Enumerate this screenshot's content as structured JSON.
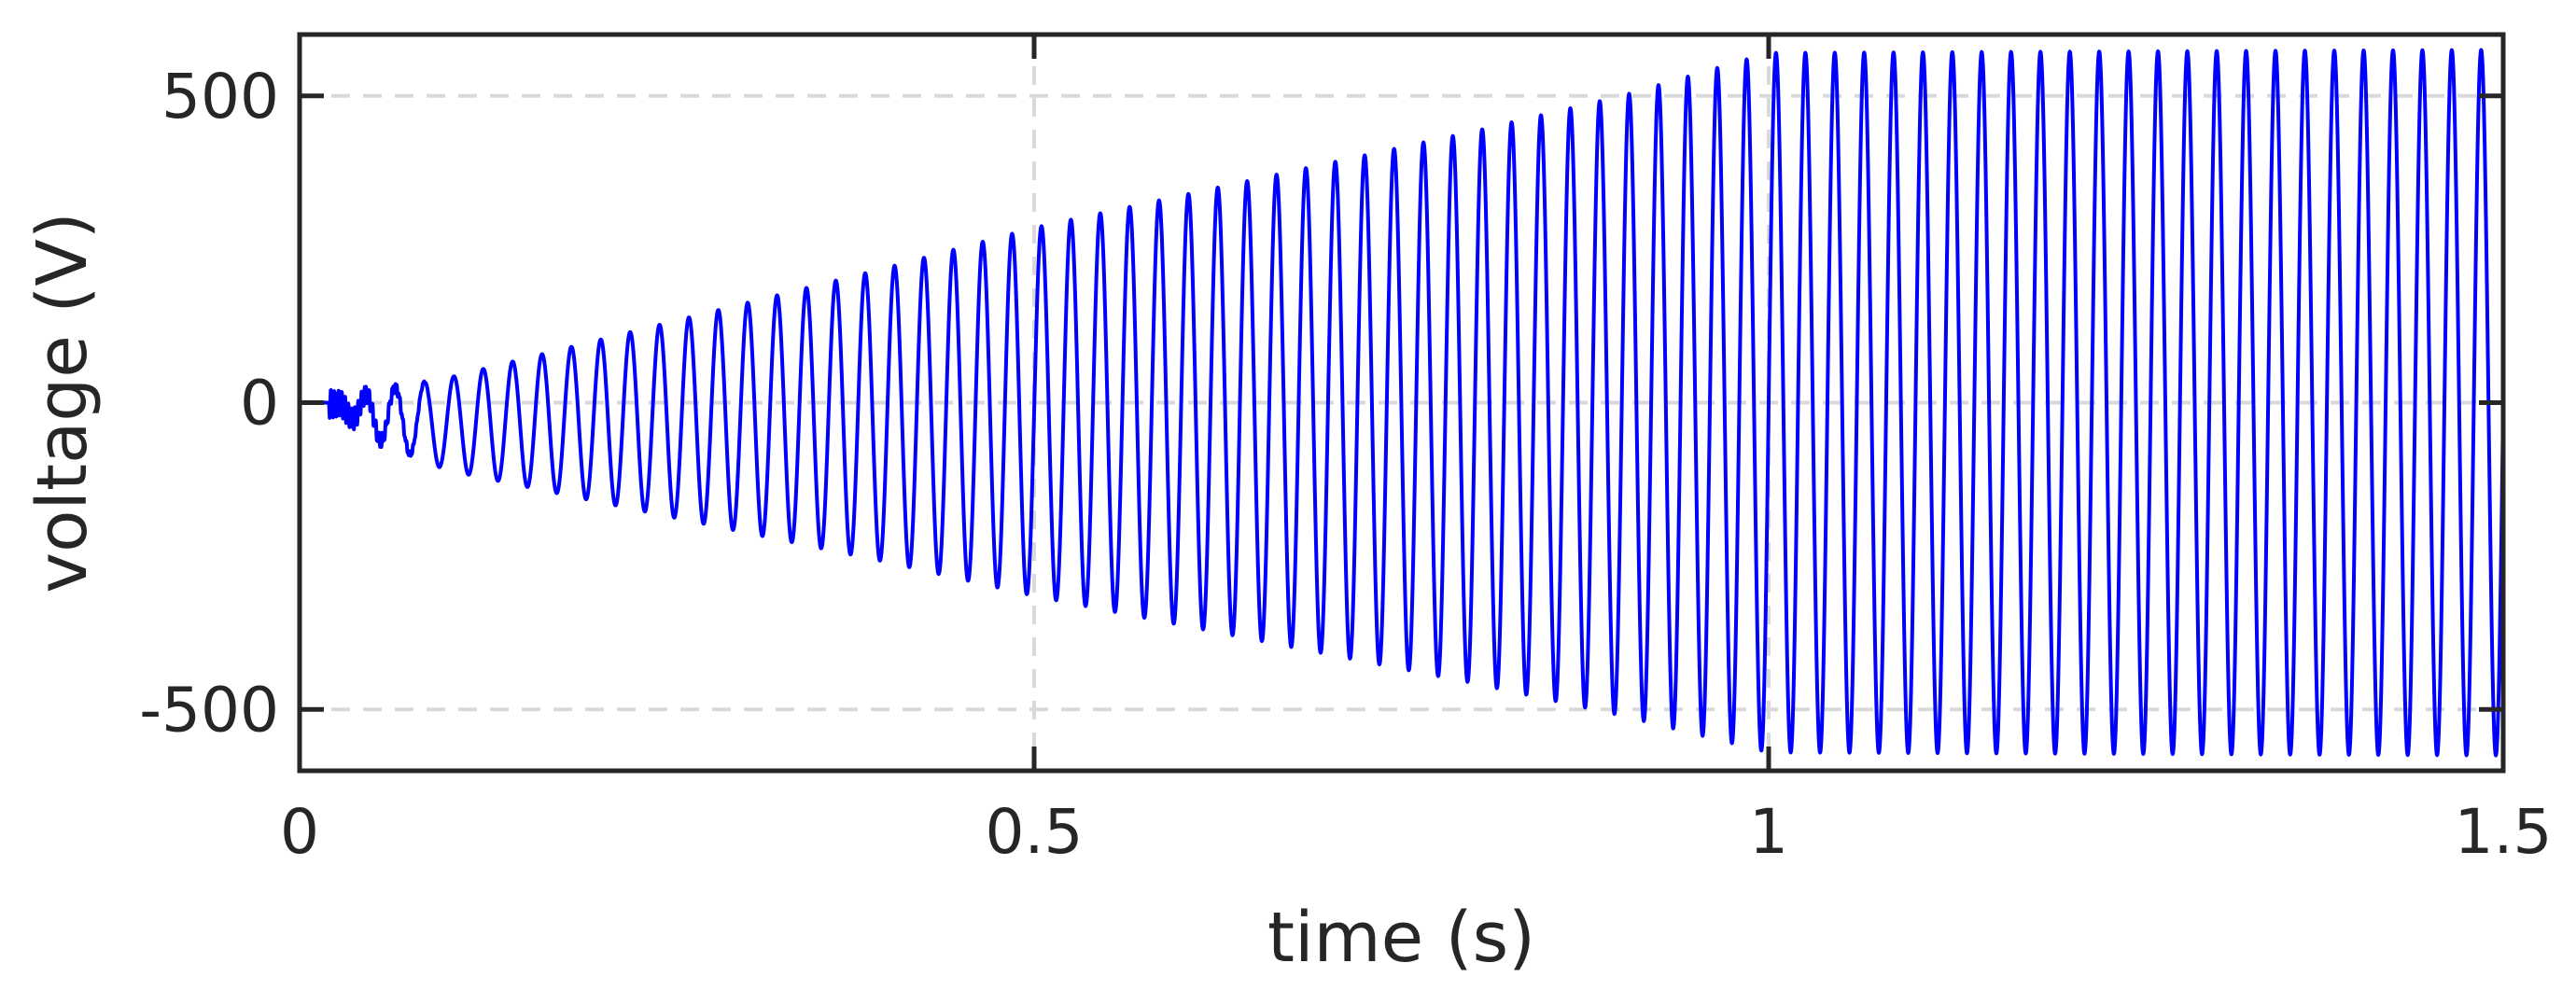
{
  "chart_data": {
    "type": "line",
    "title": "",
    "xlabel": "time (s)",
    "ylabel": "voltage (V)",
    "xlim": [
      0,
      1.5
    ],
    "ylim": [
      -600,
      600
    ],
    "x_ticks": [
      0,
      0.5,
      1,
      1.5
    ],
    "x_tick_labels": [
      "0",
      "0.5",
      "1",
      "1.5"
    ],
    "y_ticks": [
      -500,
      0,
      500
    ],
    "y_tick_labels": [
      "-500",
      "0",
      "500"
    ],
    "grid": true,
    "grid_style": "dashed",
    "legend": "none",
    "series": [
      {
        "color": "#0000ff",
        "frequency_hz": 50,
        "signal_start_s": 0.02,
        "envelope_points": [
          {
            "t": 0.0,
            "amp": 0
          },
          {
            "t": 0.02,
            "amp": 0
          },
          {
            "t": 0.05,
            "amp": 40
          },
          {
            "t": 0.1,
            "amp": 75
          },
          {
            "t": 0.2,
            "amp": 130
          },
          {
            "t": 0.3,
            "amp": 185
          },
          {
            "t": 0.4,
            "amp": 240
          },
          {
            "t": 0.5,
            "amp": 300
          },
          {
            "t": 0.6,
            "amp": 350
          },
          {
            "t": 0.7,
            "amp": 400
          },
          {
            "t": 0.8,
            "amp": 450
          },
          {
            "t": 0.9,
            "amp": 505
          },
          {
            "t": 1.0,
            "amp": 570
          },
          {
            "t": 1.5,
            "amp": 575
          }
        ],
        "offset_points": [
          {
            "t": 0.0,
            "v": 0
          },
          {
            "t": 0.02,
            "v": 0
          },
          {
            "t": 0.05,
            "v": -20
          },
          {
            "t": 0.1,
            "v": -35
          },
          {
            "t": 0.2,
            "v": -30
          },
          {
            "t": 0.3,
            "v": -25
          },
          {
            "t": 0.4,
            "v": -20
          },
          {
            "t": 0.5,
            "v": -15
          },
          {
            "t": 0.7,
            "v": -10
          },
          {
            "t": 0.9,
            "v": -5
          },
          {
            "t": 1.0,
            "v": 0
          },
          {
            "t": 1.5,
            "v": 0
          }
        ]
      }
    ]
  }
}
